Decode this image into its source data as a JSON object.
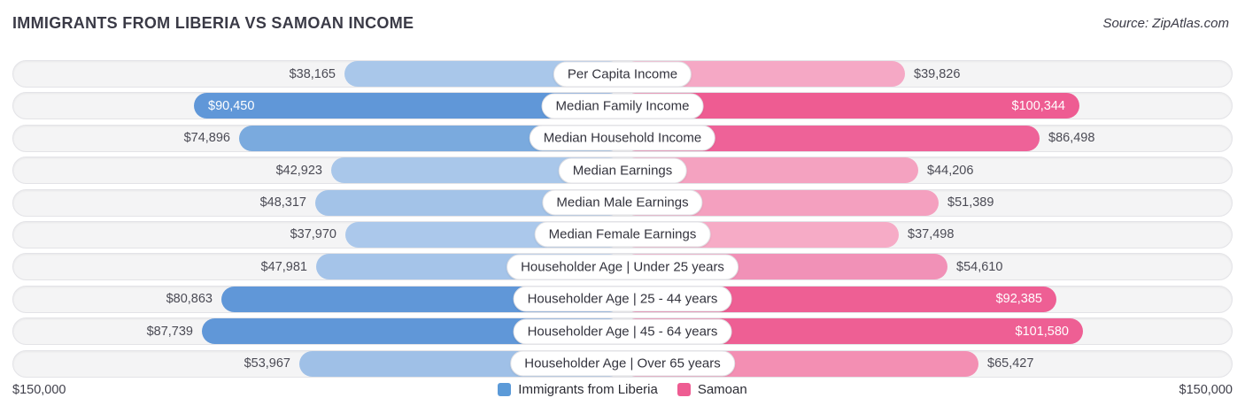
{
  "title": "IMMIGRANTS FROM LIBERIA VS SAMOAN INCOME",
  "source": "Source: ZipAtlas.com",
  "axis": {
    "left_max": "$150,000",
    "right_max": "$150,000",
    "max_value": 150000
  },
  "legend": [
    {
      "label": "Immigrants from Liberia",
      "color": "#5b9ad8"
    },
    {
      "label": "Samoan",
      "color": "#ee5c92"
    }
  ],
  "chart_data": {
    "type": "bar",
    "orientation": "horizontal-diverging",
    "title": "Immigrants from Liberia vs Samoan Income",
    "categories": [
      "Per Capita Income",
      "Median Family Income",
      "Median Household Income",
      "Median Earnings",
      "Median Male Earnings",
      "Median Female Earnings",
      "Householder Age | Under 25 years",
      "Householder Age | 25 - 44 years",
      "Householder Age | 45 - 64 years",
      "Householder Age | Over 65 years"
    ],
    "series": [
      {
        "name": "Immigrants from Liberia",
        "values": [
          38165,
          90450,
          74896,
          42923,
          48317,
          37970,
          47981,
          80863,
          87739,
          53967
        ]
      },
      {
        "name": "Samoan",
        "values": [
          39826,
          100344,
          86498,
          44206,
          51389,
          37498,
          54610,
          92385,
          101580,
          65427
        ]
      }
    ],
    "xlim": [
      0,
      150000
    ],
    "legend_position": "bottom",
    "grid": false
  },
  "rows": [
    {
      "label": "Per Capita Income",
      "left": {
        "display": "$38,165",
        "value": 38165,
        "color": "#a9c7ea",
        "inside": false
      },
      "right": {
        "display": "$39,826",
        "value": 39826,
        "color": "#f5a8c5",
        "inside": false
      }
    },
    {
      "label": "Median Family Income",
      "left": {
        "display": "$90,450",
        "value": 90450,
        "color": "#6097d8",
        "inside": true
      },
      "right": {
        "display": "$100,344",
        "value": 100344,
        "color": "#ee5c92",
        "inside": true
      }
    },
    {
      "label": "Median Household Income",
      "left": {
        "display": "$74,896",
        "value": 74896,
        "color": "#7aaade",
        "inside": false
      },
      "right": {
        "display": "$86,498",
        "value": 86498,
        "color": "#ee6298",
        "inside": false
      }
    },
    {
      "label": "Median Earnings",
      "left": {
        "display": "$42,923",
        "value": 42923,
        "color": "#a9c7ea",
        "inside": false
      },
      "right": {
        "display": "$44,206",
        "value": 44206,
        "color": "#f4a2c0",
        "inside": false
      }
    },
    {
      "label": "Median Male Earnings",
      "left": {
        "display": "$48,317",
        "value": 48317,
        "color": "#a3c3e8",
        "inside": false
      },
      "right": {
        "display": "$51,389",
        "value": 51389,
        "color": "#f4a0bf",
        "inside": false
      }
    },
    {
      "label": "Median Female Earnings",
      "left": {
        "display": "$37,970",
        "value": 37970,
        "color": "#abc8eb",
        "inside": false
      },
      "right": {
        "display": "$37,498",
        "value": 37498,
        "color": "#f6abc6",
        "inside": false
      }
    },
    {
      "label": "Householder Age | Under 25 years",
      "left": {
        "display": "$47,981",
        "value": 47981,
        "color": "#a5c4e9",
        "inside": false
      },
      "right": {
        "display": "$54,610",
        "value": 54610,
        "color": "#f191b7",
        "inside": false
      }
    },
    {
      "label": "Householder Age | 25 - 44 years",
      "left": {
        "display": "$80,863",
        "value": 80863,
        "color": "#6097d8",
        "inside": false
      },
      "right": {
        "display": "$92,385",
        "value": 92385,
        "color": "#ee5f94",
        "inside": true
      }
    },
    {
      "label": "Householder Age | 45 - 64 years",
      "left": {
        "display": "$87,739",
        "value": 87739,
        "color": "#6097d8",
        "inside": false
      },
      "right": {
        "display": "$101,580",
        "value": 101580,
        "color": "#ee5f94",
        "inside": true
      }
    },
    {
      "label": "Householder Age | Over 65 years",
      "left": {
        "display": "$53,967",
        "value": 53967,
        "color": "#9fc0e7",
        "inside": false
      },
      "right": {
        "display": "$65,427",
        "value": 65427,
        "color": "#f38fb3",
        "inside": false
      }
    }
  ]
}
